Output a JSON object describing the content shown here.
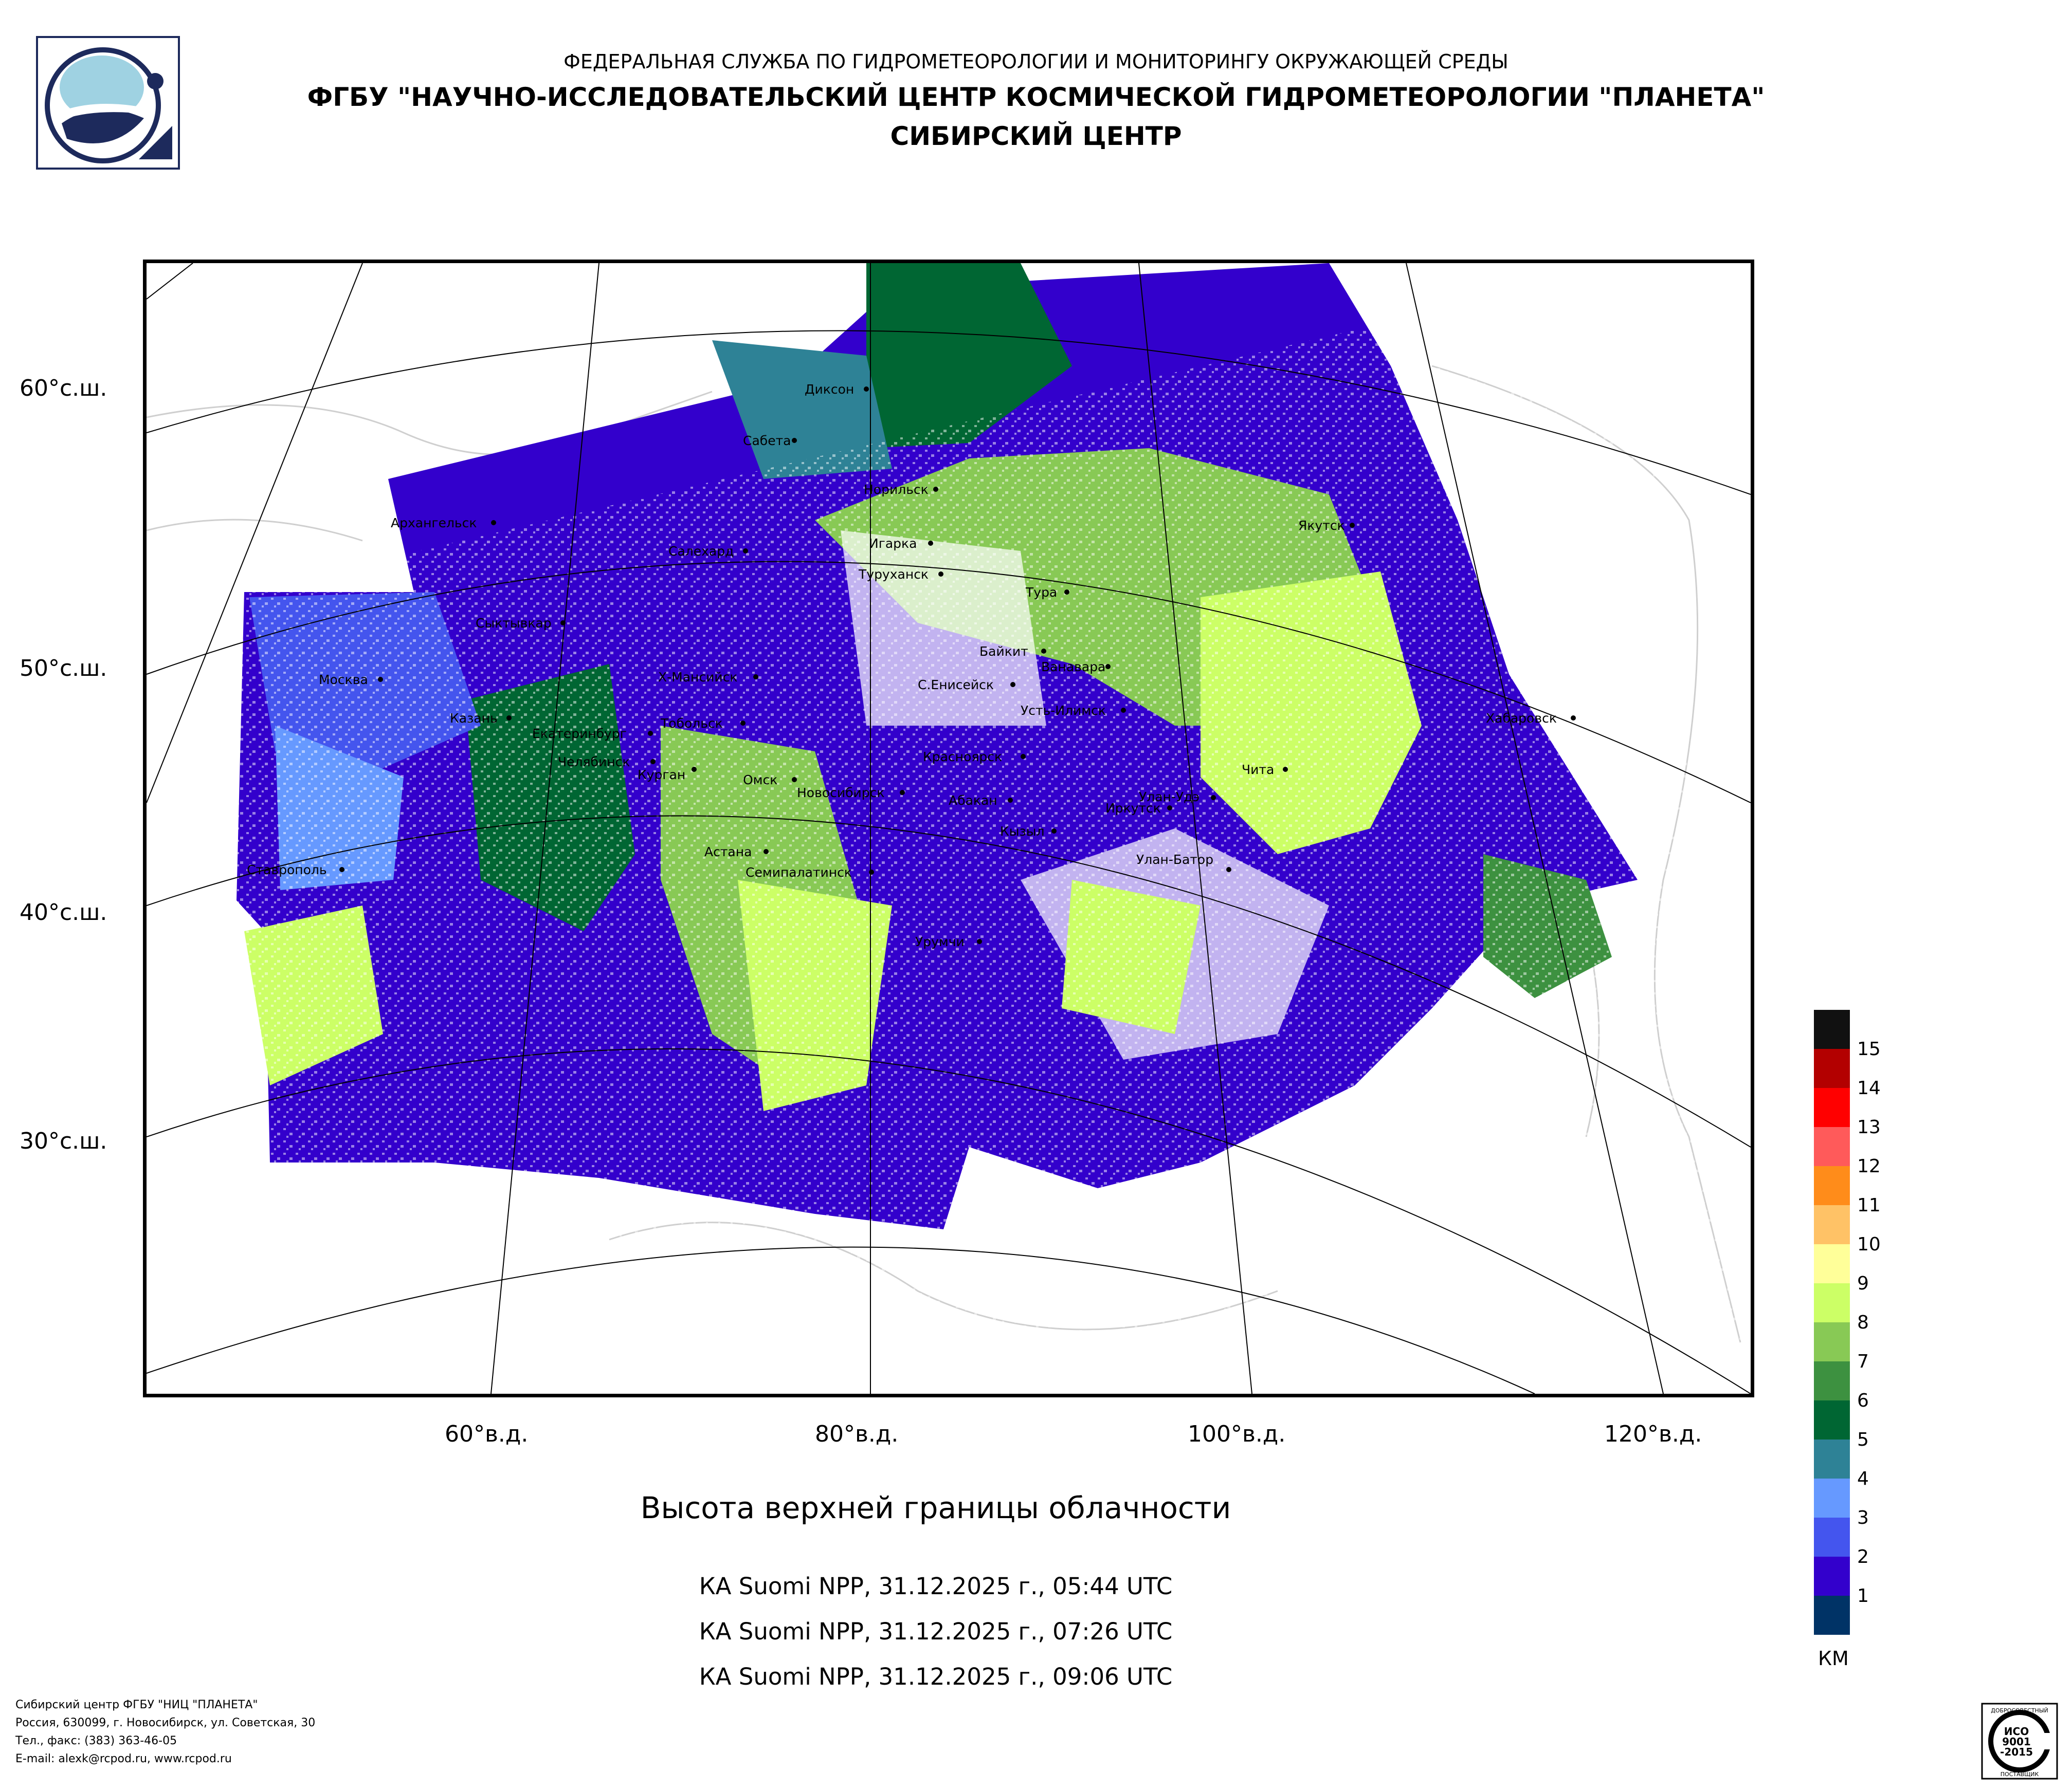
{
  "header": {
    "line1": "ФЕДЕРАЛЬНАЯ СЛУЖБА ПО ГИДРОМЕТЕОРОЛОГИИ И МОНИТОРИНГУ ОКРУЖАЮЩЕЙ СРЕДЫ",
    "line2": "ФГБУ \"НАУЧНО-ИССЛЕДОВАТЕЛЬСКИЙ ЦЕНТР КОСМИЧЕСКОЙ ГИДРОМЕТЕОРОЛОГИИ \"ПЛАНЕТА\"",
    "line3": "СИБИРСКИЙ ЦЕНТР"
  },
  "map": {
    "lat_labels": [
      "60°с.ш.",
      "50°с.ш.",
      "40°с.ш.",
      "30°с.ш."
    ],
    "lon_labels": [
      "60°в.д.",
      "80°в.д.",
      "100°в.д.",
      "120°в.д."
    ],
    "cities": [
      "Диксон",
      "Сабета",
      "Норильск",
      "Архангельск",
      "Салехард",
      "Игарка",
      "Туруханск",
      "Якутск",
      "Тура",
      "Сыктывкар",
      "Байкит",
      "Ванавара",
      "Москва",
      "Х-Мансийск",
      "С.Енисейск",
      "Усть-Илимск",
      "Хабаровск",
      "Казань",
      "Екатеринбург",
      "Тобольск",
      "Красноярск",
      "Чита",
      "Челябинск",
      "Курган",
      "Омск",
      "Новосибирск",
      "Абакан",
      "Улан-Удэ",
      "Иркутск",
      "Кызыл",
      "Астана",
      "Ставрополь",
      "Семипалатинск",
      "Улан-Батор",
      "Урумчи"
    ]
  },
  "title": "Высота верхней границы облачности",
  "passes": [
    "КА Suomi NPP, 31.12.2025 г., 05:44 UTC",
    "КА Suomi NPP, 31.12.2025 г., 07:26 UTC",
    "КА Suomi NPP, 31.12.2025 г., 09:06 UTC"
  ],
  "legend": {
    "unit": "КМ",
    "items": [
      {
        "label": "15",
        "color": "#111111"
      },
      {
        "label": "14",
        "color": "#b30000"
      },
      {
        "label": "13",
        "color": "#ff0000"
      },
      {
        "label": "12",
        "color": "#ff5a5a"
      },
      {
        "label": "11",
        "color": "#ff8c1a"
      },
      {
        "label": "10",
        "color": "#ffc266"
      },
      {
        "label": "9",
        "color": "#ffff99"
      },
      {
        "label": "8",
        "color": "#ccff66"
      },
      {
        "label": "7",
        "color": "#88c955"
      },
      {
        "label": "6",
        "color": "#3d9140"
      },
      {
        "label": "5",
        "color": "#006633"
      },
      {
        "label": "4",
        "color": "#2e8296"
      },
      {
        "label": "3",
        "color": "#6699ff"
      },
      {
        "label": "2",
        "color": "#4455ee"
      },
      {
        "label": "1",
        "color": "#3300cc"
      },
      {
        "label": "",
        "color": "#003366"
      }
    ]
  },
  "footer": {
    "line1": "Сибирский центр ФГБУ \"НИЦ \"ПЛАНЕТА\"",
    "line2": "Россия, 630099, г. Новосибирск, ул. Советская, 30",
    "line3": "Тел., факс: (383) 363-46-05",
    "line4": "E-mail: alexk@rcpod.ru, www.rcpod.ru"
  },
  "iso": {
    "top": "ДОБРОСОВЕСТНЫЙ",
    "l1": "ИСО",
    "l2": "9001",
    "l3": "-2015",
    "bottom": "ПОСТАВЩИК"
  }
}
